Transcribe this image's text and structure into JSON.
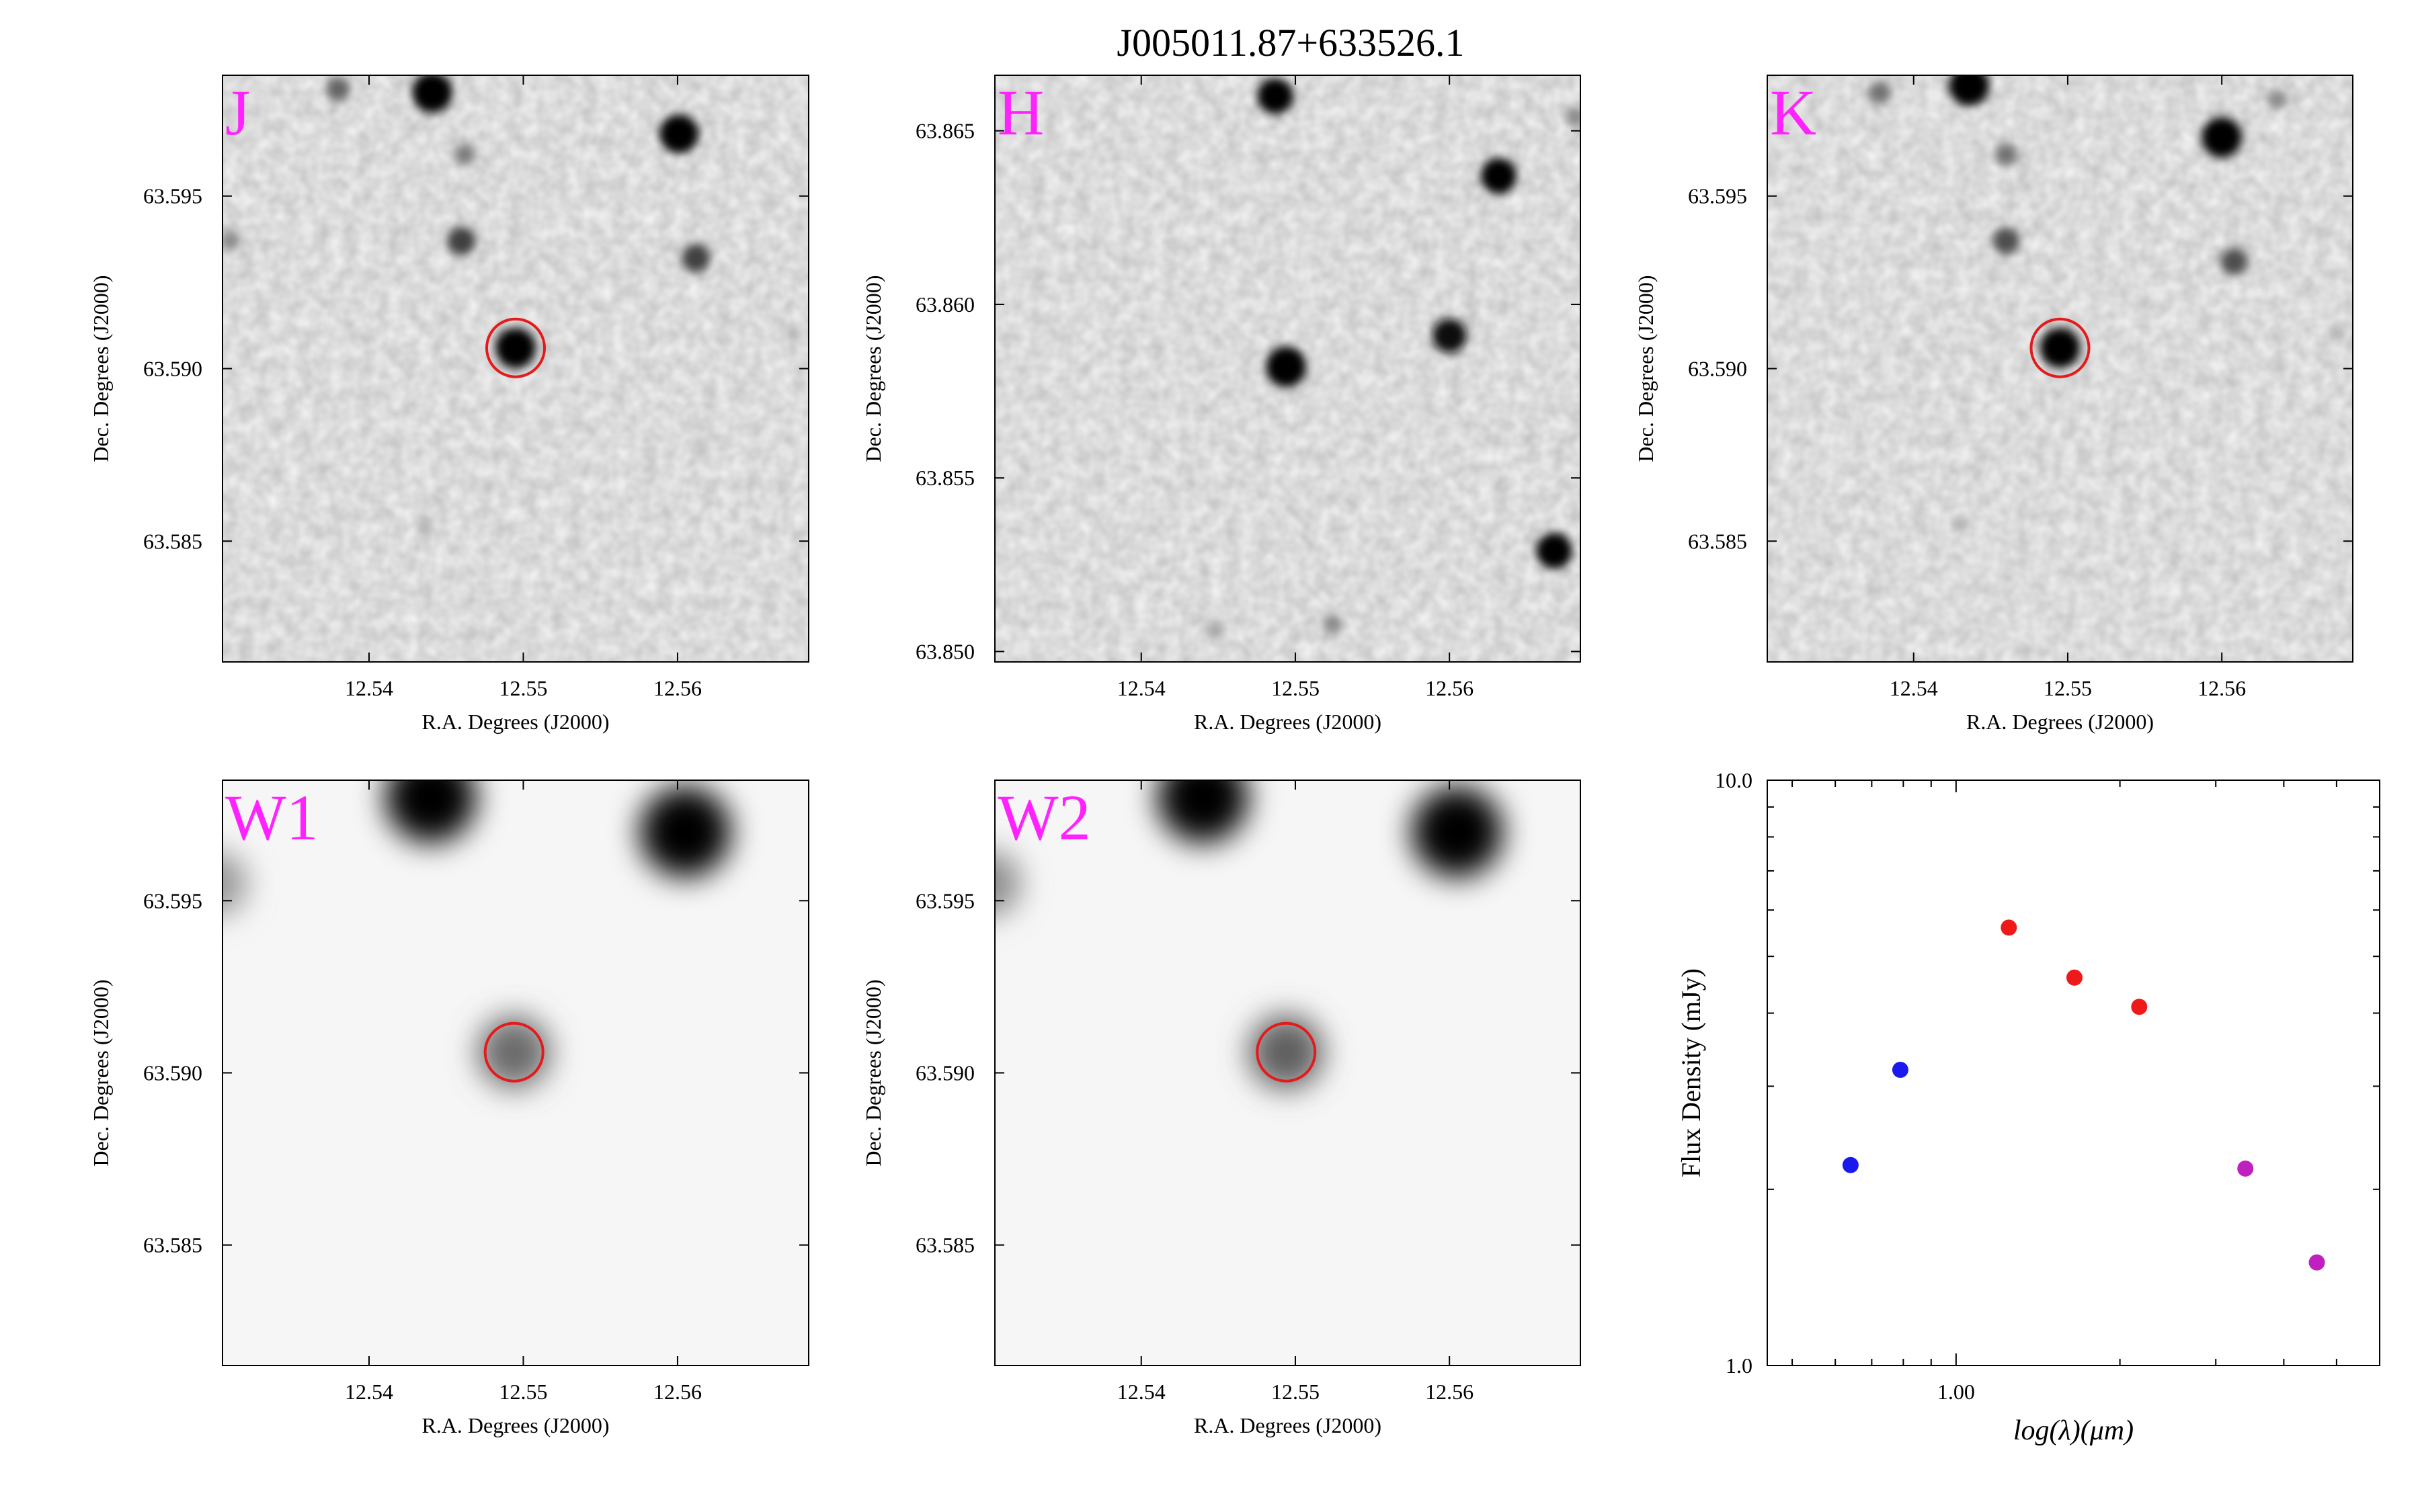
{
  "title": "J005011.87+633526.1",
  "colors": {
    "band_label": "#ff22ff",
    "aperture": "#e41a1c",
    "optical_points": "#1a1aee",
    "nir_points": "#ee1a1a",
    "mir_points": "#c020c0"
  },
  "chart_data": [
    {
      "type": "image",
      "band": "J",
      "xlabel": "R.A. Degrees (J2000)",
      "ylabel": "Dec. Degrees (J2000)",
      "xlim": [
        12.5305,
        12.5685
      ],
      "ylim": [
        63.5815,
        63.5985
      ],
      "xticks": [
        "12.54",
        "12.55",
        "12.56"
      ],
      "yticks": [
        "63.585",
        "63.590",
        "63.595"
      ],
      "aperture": {
        "ra": 12.5495,
        "dec": 63.5906
      },
      "sources": [
        {
          "ra": 12.5495,
          "dec": 63.5906,
          "flux": 1.0
        },
        {
          "ra": 12.5441,
          "dec": 63.598,
          "flux": 1.0
        },
        {
          "ra": 12.5601,
          "dec": 63.5968,
          "flux": 0.95
        },
        {
          "ra": 12.546,
          "dec": 63.5937,
          "flux": 0.6
        },
        {
          "ra": 12.5612,
          "dec": 63.5932,
          "flux": 0.6
        },
        {
          "ra": 12.538,
          "dec": 63.5981,
          "flux": 0.45
        },
        {
          "ra": 12.5462,
          "dec": 63.5962,
          "flux": 0.35
        },
        {
          "ra": 12.531,
          "dec": 63.5937,
          "flux": 0.3
        },
        {
          "ra": 12.5436,
          "dec": 63.5854,
          "flux": 0.15
        },
        {
          "ra": 12.5615,
          "dec": 63.5878,
          "flux": 0.1
        },
        {
          "ra": 12.5675,
          "dec": 63.591,
          "flux": 0.15
        }
      ]
    },
    {
      "type": "image",
      "band": "H",
      "xlabel": "R.A. Degrees (J2000)",
      "ylabel": "Dec. Degrees (J2000)",
      "xlim": [
        12.5305,
        12.5685
      ],
      "ylim": [
        63.8497,
        63.8666
      ],
      "xticks": [
        "12.54",
        "12.55",
        "12.56"
      ],
      "yticks": [
        "63.850",
        "63.855",
        "63.860",
        "63.865"
      ],
      "aperture": null,
      "sources": [
        {
          "ra": 12.5494,
          "dec": 63.8582,
          "flux": 1.0
        },
        {
          "ra": 12.5487,
          "dec": 63.866,
          "flux": 0.85
        },
        {
          "ra": 12.5632,
          "dec": 63.8637,
          "flux": 0.85
        },
        {
          "ra": 12.56,
          "dec": 63.8591,
          "flux": 0.8
        },
        {
          "ra": 12.5668,
          "dec": 63.8529,
          "flux": 0.85
        },
        {
          "ra": 12.5524,
          "dec": 63.8508,
          "flux": 0.3
        },
        {
          "ra": 12.5448,
          "dec": 63.8506,
          "flux": 0.2
        },
        {
          "ra": 12.5682,
          "dec": 63.8654,
          "flux": 0.3
        }
      ]
    },
    {
      "type": "image",
      "band": "K",
      "xlabel": "R.A. Degrees (J2000)",
      "ylabel": "Dec. Degrees (J2000)",
      "xlim": [
        12.5305,
        12.5685
      ],
      "ylim": [
        63.5815,
        63.5985
      ],
      "xticks": [
        "12.54",
        "12.55",
        "12.56"
      ],
      "yticks": [
        "63.585",
        "63.590",
        "63.595"
      ],
      "aperture": {
        "ra": 12.5495,
        "dec": 63.5906
      },
      "sources": [
        {
          "ra": 12.5495,
          "dec": 63.5906,
          "flux": 1.0
        },
        {
          "ra": 12.5436,
          "dec": 63.5982,
          "flux": 1.0
        },
        {
          "ra": 12.56,
          "dec": 63.5967,
          "flux": 1.0
        },
        {
          "ra": 12.546,
          "dec": 63.5937,
          "flux": 0.55
        },
        {
          "ra": 12.5608,
          "dec": 63.5931,
          "flux": 0.55
        },
        {
          "ra": 12.5378,
          "dec": 63.598,
          "flux": 0.4
        },
        {
          "ra": 12.546,
          "dec": 63.5962,
          "flux": 0.4
        },
        {
          "ra": 12.5636,
          "dec": 63.5978,
          "flux": 0.3
        },
        {
          "ra": 12.543,
          "dec": 63.5855,
          "flux": 0.15
        },
        {
          "ra": 12.5675,
          "dec": 63.591,
          "flux": 0.15
        }
      ]
    },
    {
      "type": "image",
      "band": "W1",
      "xlabel": "R.A. Degrees (J2000)",
      "ylabel": "Dec. Degrees (J2000)",
      "xlim": [
        12.5305,
        12.5685
      ],
      "ylim": [
        63.5815,
        63.5985
      ],
      "xticks": [
        "12.54",
        "12.55",
        "12.56"
      ],
      "yticks": [
        "63.585",
        "63.590",
        "63.595"
      ],
      "aperture": {
        "ra": 12.5494,
        "dec": 63.5906
      },
      "sources": [
        {
          "ra": 12.5494,
          "dec": 63.5906,
          "flux": 0.55
        },
        {
          "ra": 12.544,
          "dec": 63.598,
          "flux": 1.0
        },
        {
          "ra": 12.5605,
          "dec": 63.597,
          "flux": 1.0
        },
        {
          "ra": 12.53,
          "dec": 63.5955,
          "flux": 0.35
        }
      ]
    },
    {
      "type": "image",
      "band": "W2",
      "xlabel": "R.A. Degrees (J2000)",
      "ylabel": "Dec. Degrees (J2000)",
      "xlim": [
        12.5305,
        12.5685
      ],
      "ylim": [
        63.5815,
        63.5985
      ],
      "xticks": [
        "12.54",
        "12.55",
        "12.56"
      ],
      "yticks": [
        "63.585",
        "63.590",
        "63.595"
      ],
      "aperture": {
        "ra": 12.5494,
        "dec": 63.5906
      },
      "sources": [
        {
          "ra": 12.5494,
          "dec": 63.5906,
          "flux": 0.6
        },
        {
          "ra": 12.544,
          "dec": 63.598,
          "flux": 1.0
        },
        {
          "ra": 12.5605,
          "dec": 63.597,
          "flux": 1.0
        },
        {
          "ra": 12.53,
          "dec": 63.5955,
          "flux": 0.4
        }
      ]
    },
    {
      "type": "scatter",
      "xlabel": "log(λ)(μm)",
      "ylabel": "Flux Density (mJy)",
      "xscale": "log",
      "yscale": "log",
      "xlim": [
        0.45,
        6.0
      ],
      "ylim": [
        1.0,
        10.0
      ],
      "xticks": [
        "1.00"
      ],
      "yticks": [
        "1.0",
        "10.0"
      ],
      "series": [
        {
          "color": "#1a1aee",
          "x": [
            0.64,
            0.79
          ],
          "y": [
            2.2,
            3.2
          ]
        },
        {
          "color": "#ee1a1a",
          "x": [
            1.25,
            1.65,
            2.17
          ],
          "y": [
            5.6,
            4.6,
            4.1
          ]
        },
        {
          "color": "#c020c0",
          "x": [
            3.4,
            4.6
          ],
          "y": [
            2.17,
            1.5
          ]
        }
      ]
    }
  ]
}
